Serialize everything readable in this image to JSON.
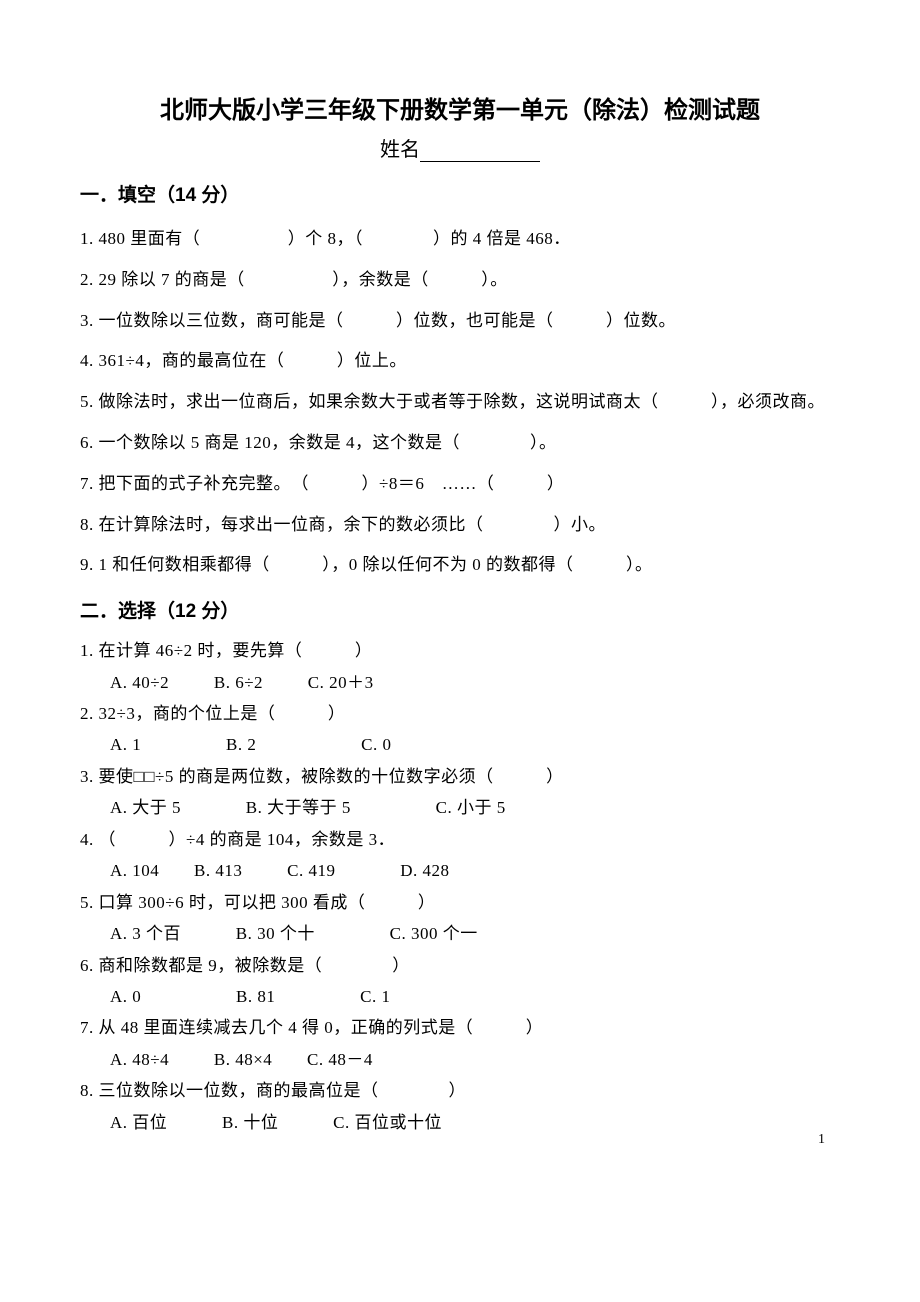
{
  "title": "北师大版小学三年级下册数学第一单元（除法）检测试题",
  "name_label": "姓名",
  "sections": {
    "fill": {
      "header": "一．填空（14 分）",
      "q1": "1. 480 里面有（　　　　　）个 8，（　　　　）的 4 倍是 468．",
      "q2": "2. 29 除以 7 的商是（　　　　　），余数是（　　　）。",
      "q3": "3. 一位数除以三位数，商可能是（　　　）位数，也可能是（　　　）位数。",
      "q4": "4. 361÷4，商的最高位在（　　　）位上。",
      "q5": "5. 做除法时，求出一位商后，如果余数大于或者等于除数，这说明试商太（　　　），必须改商。",
      "q6": "6. 一个数除以 5 商是 120，余数是 4，这个数是（　　　　）。",
      "q7": "7. 把下面的式子补充完整。　（　　　）÷8＝6　……（　　　）",
      "q8": "8. 在计算除法时，每求出一位商，余下的数必须比（　　　　）小。",
      "q9": "9. 1 和任何数相乘都得（　　　），0 除以任何不为 0 的数都得（　　　）。"
    },
    "choice": {
      "header": "二．选择（12 分）",
      "q1": "1. 在计算 46÷2 时，要先算（　　　）",
      "q1a": "A. 40÷2",
      "q1b": "B. 6÷2",
      "q1c": "C. 20＋3",
      "q2": "2. 32÷3，商的个位上是（　　　）",
      "q2a": "A. 1",
      "q2b": "B. 2",
      "q2c": "C. 0",
      "q3": "3. 要使□□÷5 的商是两位数，被除数的十位数字必须（　　　）",
      "q3a": "A. 大于 5",
      "q3b": "B. 大于等于 5",
      "q3c": "C. 小于 5",
      "q4": "4. （　　　）÷4 的商是 104，余数是 3．",
      "q4a": "A. 104",
      "q4b": "B. 413",
      "q4c": "C. 419",
      "q4d": "D. 428",
      "q5": "5. 口算 300÷6 时，可以把 300 看成（　　　）",
      "q5a": "A. 3 个百",
      "q5b": "B. 30 个十",
      "q5c": "C. 300 个一",
      "q6": "6. 商和除数都是 9，被除数是（　　　　）",
      "q6a": "A. 0",
      "q6b": "B. 81",
      "q6c": "C. 1",
      "q7": "7. 从 48 里面连续减去几个 4 得 0，正确的列式是（　　　）",
      "q7a": "A. 48÷4",
      "q7b": "B. 48×4",
      "q7c": "C. 48－4",
      "q8": "8. 三位数除以一位数，商的最高位是（　　　　）",
      "q8a": "A. 百位",
      "q8b": "B. 十位",
      "q8c": "C. 百位或十位"
    }
  },
  "page_number": "1"
}
